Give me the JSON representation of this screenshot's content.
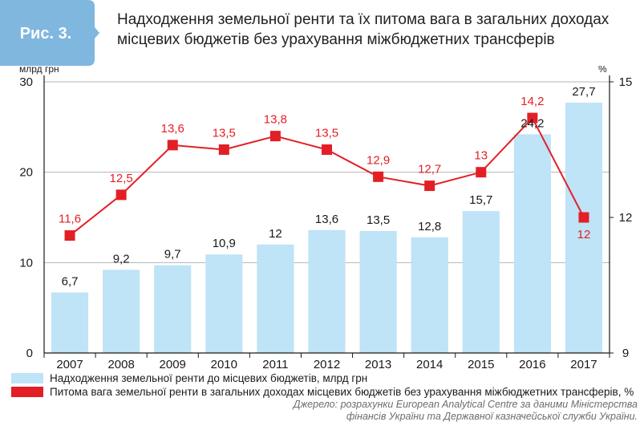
{
  "figure_label": "Рис. 3.",
  "title_lines": [
    "Надходження земельної ренти та їх питома вага в загальних доходах",
    "місцевих бюджетів без урахування міжбюджетних трансферів"
  ],
  "source_note": "Джерело: розрахунки European Analytical Centre за даними Міністерства фінансів України та Державної казначейської служби України.",
  "colors": {
    "badge": "#7fb7df",
    "bars": "#bfe3f7",
    "line": "#e31f26",
    "grid": "#b4b4b4",
    "axis": "#1a1a1a"
  },
  "chart_data": {
    "type": "bar",
    "categories": [
      "2007",
      "2008",
      "2009",
      "2010",
      "2011",
      "2012",
      "2013",
      "2014",
      "2015",
      "2016",
      "2017"
    ],
    "series": [
      {
        "name": "Надходження земельної ренти до місцевих бюджетів, млрд грн",
        "type": "bar",
        "axis": "left",
        "values": [
          6.7,
          9.2,
          9.7,
          10.9,
          12,
          13.6,
          13.5,
          12.8,
          15.7,
          24.2,
          27.7
        ],
        "labels": [
          "6,7",
          "9,2",
          "9,7",
          "10,9",
          "12",
          "13,6",
          "13,5",
          "12,8",
          "15,7",
          "24,2",
          "27,7"
        ]
      },
      {
        "name": "Питома вага земельної ренти в загальних доходах місцевих бюджетів без урахування міжбюджетних трансферів, %",
        "type": "line",
        "axis": "right",
        "values": [
          11.6,
          12.5,
          13.6,
          13.5,
          13.8,
          13.5,
          12.9,
          12.7,
          13,
          14.2,
          12
        ],
        "labels": [
          "11,6",
          "12,5",
          "13,6",
          "13,5",
          "13,8",
          "13,5",
          "12,9",
          "12,7",
          "13",
          "14,2",
          "12"
        ]
      }
    ],
    "left_axis": {
      "unit": "млрд грн",
      "min": 0,
      "max": 30,
      "ticks": [
        "0",
        "10",
        "20",
        "30"
      ]
    },
    "right_axis": {
      "unit": "%",
      "min": 9,
      "max": 15,
      "ticks": [
        "9",
        "12",
        "15"
      ]
    },
    "grid": true,
    "legend_position": "bottom"
  }
}
